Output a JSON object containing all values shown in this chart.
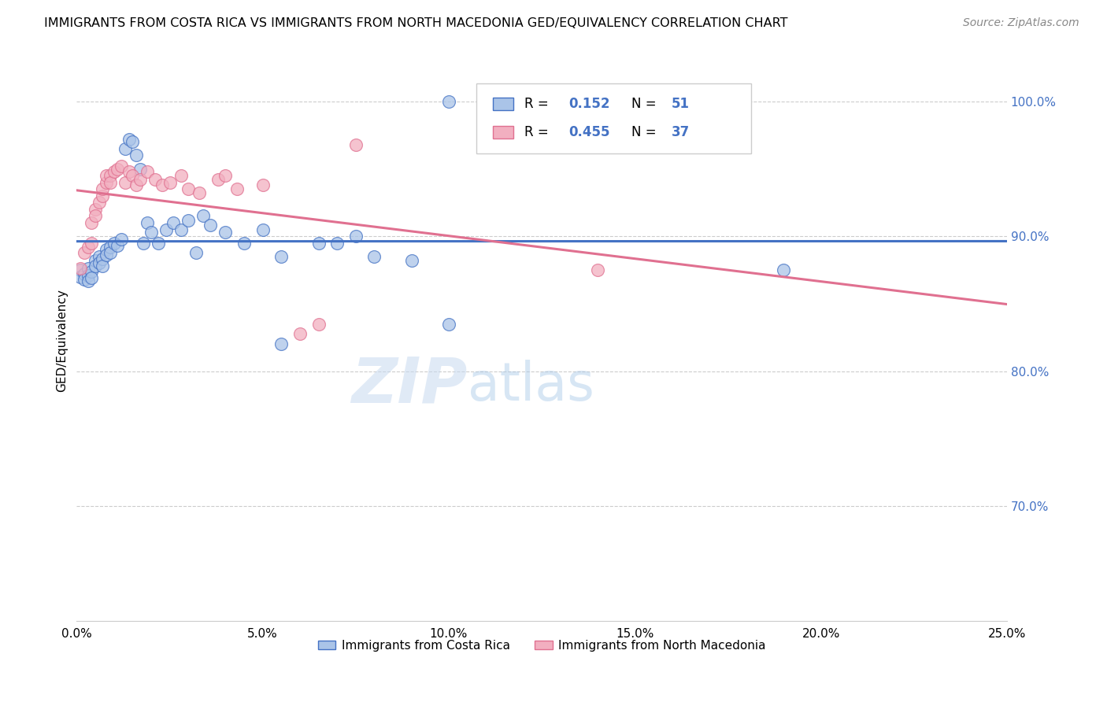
{
  "title": "IMMIGRANTS FROM COSTA RICA VS IMMIGRANTS FROM NORTH MACEDONIA GED/EQUIVALENCY CORRELATION CHART",
  "source": "Source: ZipAtlas.com",
  "ylabel": "GED/Equivalency",
  "ytick_labels": [
    "100.0%",
    "90.0%",
    "80.0%",
    "70.0%"
  ],
  "ytick_values": [
    1.0,
    0.9,
    0.8,
    0.7
  ],
  "xlim": [
    0.0,
    0.25
  ],
  "ylim": [
    0.615,
    1.03
  ],
  "legend_r1": "0.152",
  "legend_n1": "51",
  "legend_r2": "0.455",
  "legend_n2": "37",
  "color_blue": "#aac4e8",
  "color_pink": "#f2afc0",
  "color_blue_line": "#4472c4",
  "color_pink_line": "#e07090",
  "watermark_zip": "ZIP",
  "watermark_atlas": "atlas",
  "costa_rica_x": [
    0.001,
    0.001,
    0.002,
    0.002,
    0.003,
    0.003,
    0.003,
    0.004,
    0.004,
    0.005,
    0.005,
    0.006,
    0.006,
    0.007,
    0.007,
    0.008,
    0.008,
    0.009,
    0.009,
    0.01,
    0.011,
    0.012,
    0.013,
    0.014,
    0.015,
    0.016,
    0.017,
    0.018,
    0.019,
    0.02,
    0.022,
    0.024,
    0.026,
    0.028,
    0.03,
    0.032,
    0.034,
    0.036,
    0.04,
    0.045,
    0.05,
    0.055,
    0.065,
    0.07,
    0.075,
    0.08,
    0.09,
    0.1,
    0.19,
    0.1,
    0.055
  ],
  "costa_rica_y": [
    0.875,
    0.87,
    0.872,
    0.868,
    0.876,
    0.871,
    0.867,
    0.874,
    0.869,
    0.882,
    0.878,
    0.885,
    0.88,
    0.883,
    0.878,
    0.89,
    0.886,
    0.892,
    0.888,
    0.895,
    0.893,
    0.898,
    0.965,
    0.972,
    0.97,
    0.96,
    0.95,
    0.895,
    0.91,
    0.903,
    0.895,
    0.905,
    0.91,
    0.905,
    0.912,
    0.888,
    0.915,
    0.908,
    0.903,
    0.895,
    0.905,
    0.885,
    0.895,
    0.895,
    0.9,
    0.885,
    0.882,
    0.835,
    0.875,
    1.0,
    0.82
  ],
  "north_mac_x": [
    0.001,
    0.002,
    0.003,
    0.004,
    0.004,
    0.005,
    0.005,
    0.006,
    0.007,
    0.007,
    0.008,
    0.008,
    0.009,
    0.009,
    0.01,
    0.011,
    0.012,
    0.013,
    0.014,
    0.015,
    0.016,
    0.017,
    0.019,
    0.021,
    0.023,
    0.025,
    0.028,
    0.03,
    0.033,
    0.038,
    0.04,
    0.043,
    0.05,
    0.06,
    0.065,
    0.075,
    0.14
  ],
  "north_mac_y": [
    0.876,
    0.888,
    0.892,
    0.895,
    0.91,
    0.92,
    0.915,
    0.925,
    0.93,
    0.935,
    0.94,
    0.945,
    0.945,
    0.94,
    0.948,
    0.95,
    0.952,
    0.94,
    0.948,
    0.945,
    0.938,
    0.942,
    0.948,
    0.942,
    0.938,
    0.94,
    0.945,
    0.935,
    0.932,
    0.942,
    0.945,
    0.935,
    0.938,
    0.828,
    0.835,
    0.968,
    0.875
  ]
}
